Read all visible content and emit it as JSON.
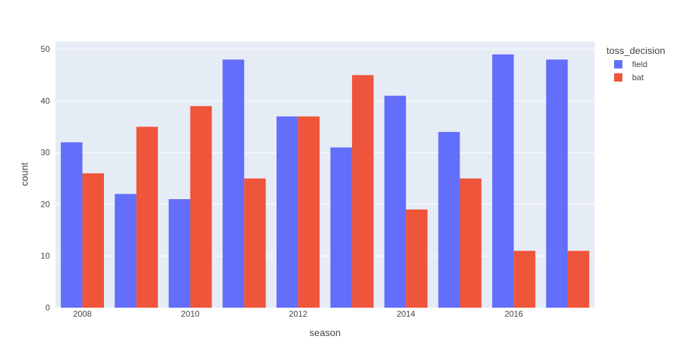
{
  "chart_data": {
    "type": "bar",
    "barmode": "group",
    "x": [
      2008,
      2009,
      2010,
      2011,
      2012,
      2013,
      2014,
      2015,
      2016,
      2017
    ],
    "x_tick_labels": [
      "2008",
      "2010",
      "2012",
      "2014",
      "2016"
    ],
    "series": [
      {
        "name": "field",
        "color": "#636efa",
        "values": [
          32,
          22,
          21,
          48,
          37,
          31,
          41,
          34,
          49,
          48
        ]
      },
      {
        "name": "bat",
        "color": "#ef553b",
        "values": [
          26,
          35,
          39,
          25,
          37,
          45,
          19,
          25,
          11,
          11
        ]
      }
    ],
    "xlabel": "season",
    "ylabel": "count",
    "ylim": [
      0,
      51.5
    ],
    "y_ticks": [
      0,
      10,
      20,
      30,
      40,
      50
    ],
    "grid": true,
    "legend_title": "toss_decision",
    "legend_position": "top-right",
    "plot_background": "#e5ecf6"
  }
}
